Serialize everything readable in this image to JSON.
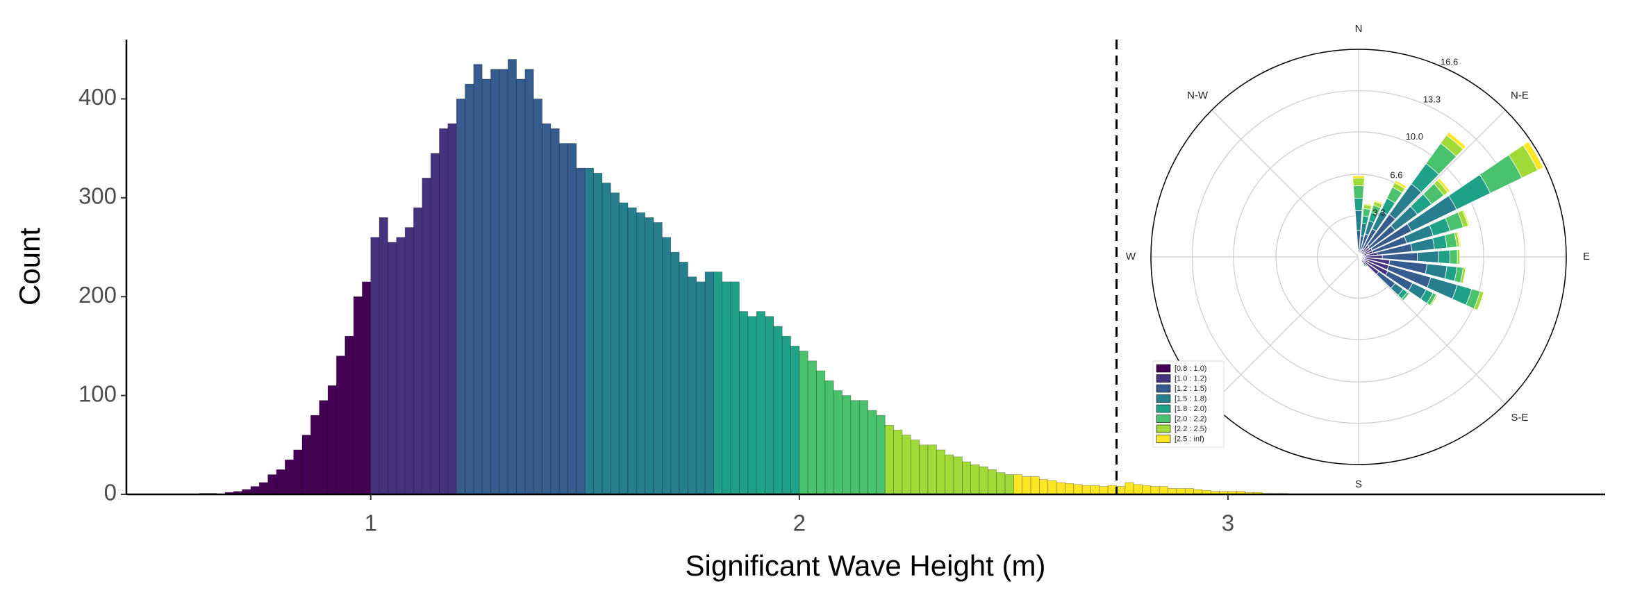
{
  "chart_data": [
    {
      "type": "histogram",
      "xlabel": "Significant Wave Height (m)",
      "ylabel": "Count",
      "bins": [
        0.6,
        0.62,
        0.64,
        0.66,
        0.68,
        0.7,
        0.72,
        0.74,
        0.76,
        0.78,
        0.8,
        0.82,
        0.84,
        0.86,
        0.88,
        0.9,
        0.92,
        0.94,
        0.96,
        0.98,
        1.0,
        1.02,
        1.04,
        1.06,
        1.08,
        1.1,
        1.12,
        1.14,
        1.16,
        1.18,
        1.2,
        1.22,
        1.24,
        1.26,
        1.28,
        1.3,
        1.32,
        1.34,
        1.36,
        1.38,
        1.4,
        1.42,
        1.44,
        1.46,
        1.48,
        1.5,
        1.52,
        1.54,
        1.56,
        1.58,
        1.6,
        1.62,
        1.64,
        1.66,
        1.68,
        1.7,
        1.72,
        1.74,
        1.76,
        1.78,
        1.8,
        1.82,
        1.84,
        1.86,
        1.88,
        1.9,
        1.92,
        1.94,
        1.96,
        1.98,
        2.0,
        2.02,
        2.04,
        2.06,
        2.08,
        2.1,
        2.12,
        2.14,
        2.16,
        2.18,
        2.2,
        2.22,
        2.24,
        2.26,
        2.28,
        2.3,
        2.32,
        2.34,
        2.36,
        2.38,
        2.4,
        2.42,
        2.44,
        2.46,
        2.48,
        2.5,
        2.52,
        2.54,
        2.56,
        2.58,
        2.6,
        2.62,
        2.64,
        2.66,
        2.68,
        2.7,
        2.72,
        2.74,
        2.76,
        2.78,
        2.8,
        2.82,
        2.84,
        2.86,
        2.88,
        2.9,
        2.92,
        2.94,
        2.96,
        2.98,
        3.0,
        3.02,
        3.04,
        3.06,
        3.08,
        3.1,
        3.12,
        3.14
      ],
      "values": [
        1,
        1,
        0,
        2,
        3,
        5,
        8,
        12,
        20,
        25,
        35,
        45,
        60,
        80,
        95,
        110,
        140,
        160,
        200,
        215,
        260,
        280,
        255,
        260,
        270,
        290,
        320,
        345,
        370,
        375,
        400,
        415,
        435,
        420,
        430,
        430,
        440,
        420,
        430,
        400,
        375,
        370,
        355,
        355,
        330,
        330,
        325,
        315,
        305,
        295,
        290,
        285,
        280,
        275,
        260,
        245,
        235,
        220,
        215,
        225,
        225,
        215,
        215,
        185,
        180,
        185,
        180,
        170,
        160,
        150,
        145,
        135,
        125,
        115,
        105,
        100,
        95,
        95,
        85,
        80,
        70,
        65,
        60,
        55,
        50,
        50,
        45,
        40,
        38,
        33,
        30,
        28,
        25,
        22,
        20,
        20,
        18,
        18,
        15,
        14,
        12,
        11,
        10,
        9,
        9,
        8,
        9,
        8,
        12,
        10,
        9,
        8,
        8,
        6,
        6,
        6,
        5,
        4,
        3,
        3,
        3,
        3,
        2,
        2,
        1,
        1,
        1
      ],
      "color_breaks": [
        1.0,
        1.2,
        1.5,
        1.8,
        2.0,
        2.2,
        2.5
      ],
      "colors": [
        "#440154",
        "#46337e",
        "#365c8d",
        "#277f8e",
        "#1fa187",
        "#4ac16d",
        "#a0da39",
        "#fde725"
      ],
      "vline": 2.74,
      "xlim": [
        0.43,
        3.88
      ],
      "ylim": [
        0,
        460
      ],
      "xticks": [
        1,
        2,
        3
      ],
      "yticks": [
        0,
        100,
        200,
        300,
        400
      ],
      "grid": false
    },
    {
      "type": "windrose",
      "directions": [
        0,
        10,
        20,
        30,
        40,
        50,
        60,
        70,
        80,
        90,
        100,
        110,
        120,
        130,
        140
      ],
      "xticks": [
        {
          "value": 0,
          "label": "N"
        },
        {
          "value": 45,
          "label": "N-E"
        },
        {
          "value": 90,
          "label": "E"
        },
        {
          "value": 135,
          "label": "S-E"
        },
        {
          "value": 180,
          "label": "S"
        },
        {
          "value": 225,
          "label": null
        },
        {
          "value": 270,
          "label": "W"
        },
        {
          "value": 315,
          "label": "N-W"
        }
      ],
      "rlim": [
        0,
        16.6
      ],
      "rticks": [
        3.3,
        6.6,
        {
          "value": 10.0,
          "label": "10.0"
        },
        13.3,
        16.6
      ],
      "grid": true,
      "legend": "lower-left",
      "series": [
        {
          "name": "[0.8 : 1.0)",
          "color": "#440154",
          "values": [
            0.1,
            0.1,
            0.1,
            0.1,
            0.2,
            0.2,
            0.2,
            0.2,
            0.3,
            0.4,
            0.5,
            0.5,
            0.6,
            0.5,
            0.2
          ]
        },
        {
          "name": "[1.0 : 1.2)",
          "color": "#46337e",
          "values": [
            0.5,
            0.4,
            0.5,
            0.6,
            1.0,
            0.9,
            1.0,
            1.0,
            1.2,
            1.5,
            2.0,
            2.0,
            2.0,
            1.5,
            0.4
          ]
        },
        {
          "name": "[1.2 : 1.5)",
          "color": "#365c8d",
          "values": [
            1.5,
            1.2,
            1.3,
            1.8,
            3.0,
            2.5,
            3.5,
            2.8,
            2.8,
            2.8,
            3.0,
            3.5,
            2.2,
            1.6,
            0.3
          ]
        },
        {
          "name": "[1.5 : 1.8)",
          "color": "#277f8e",
          "values": [
            1.6,
            1.0,
            1.1,
            1.6,
            3.0,
            2.2,
            4.0,
            2.2,
            1.8,
            1.7,
            1.6,
            2.2,
            1.2,
            0.8,
            0.1
          ]
        },
        {
          "name": "[1.8 : 2.0)",
          "color": "#1fa187",
          "values": [
            1.0,
            0.6,
            0.7,
            1.1,
            2.0,
            1.4,
            3.0,
            1.4,
            1.0,
            0.9,
            0.8,
            1.2,
            0.6,
            0.4,
            0
          ]
        },
        {
          "name": "[2.0 : 2.2)",
          "color": "#4ac16d",
          "values": [
            1.0,
            0.6,
            0.6,
            1.0,
            2.0,
            1.2,
            2.8,
            1.1,
            0.8,
            0.6,
            0.5,
            0.7,
            0.3,
            0.2,
            0
          ]
        },
        {
          "name": "[2.2 : 2.5)",
          "color": "#a0da39",
          "values": [
            0.6,
            0.3,
            0.3,
            0.4,
            0.8,
            0.4,
            1.4,
            0.4,
            0.2,
            0.2,
            0.2,
            0.3,
            0.1,
            0,
            0
          ]
        },
        {
          "name": "[2.5 : inf)",
          "color": "#fde725",
          "values": [
            0.2,
            0.1,
            0.1,
            0.2,
            0.3,
            0.2,
            0.5,
            0.1,
            0.1,
            0,
            0,
            0,
            0,
            0,
            0
          ]
        }
      ]
    }
  ]
}
